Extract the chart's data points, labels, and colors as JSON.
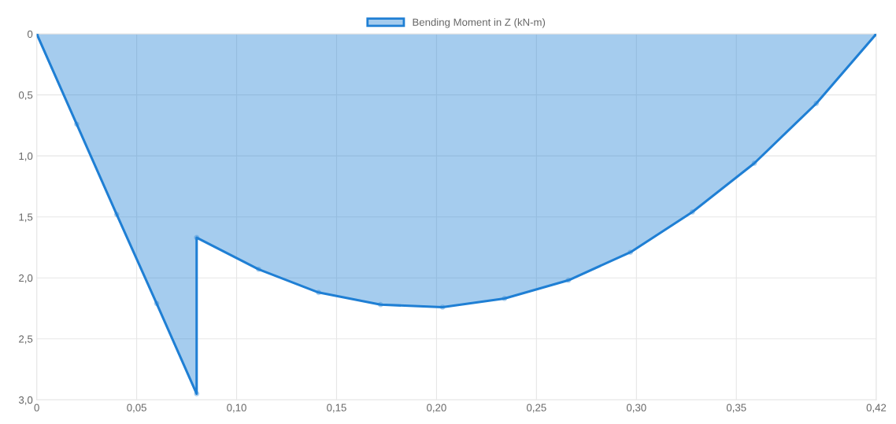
{
  "chart_data": {
    "type": "area",
    "series": [
      {
        "name": "Bending Moment in Z (kN-m)",
        "color": "#1f7fd4",
        "x": [
          0,
          0.02,
          0.04,
          0.06,
          0.08,
          0.08,
          0.111,
          0.141,
          0.172,
          0.203,
          0.234,
          0.266,
          0.297,
          0.328,
          0.359,
          0.39,
          0.42
        ],
        "values": [
          0,
          0.74,
          1.48,
          2.21,
          2.95,
          1.67,
          1.93,
          2.12,
          2.22,
          2.24,
          2.17,
          2.02,
          1.79,
          1.46,
          1.06,
          0.57,
          0
        ]
      }
    ],
    "xlim": [
      0,
      0.42
    ],
    "xticks": [
      0,
      {
        "value": 0.05,
        "label": "0,05"
      },
      {
        "value": 0.1,
        "label": "0,10"
      },
      {
        "value": 0.15,
        "label": "0,15"
      },
      {
        "value": 0.2,
        "label": "0,20"
      },
      {
        "value": 0.25,
        "label": "0,25"
      },
      {
        "value": 0.3,
        "label": "0,30"
      },
      {
        "value": 0.35,
        "label": "0,35"
      },
      {
        "value": 0.42,
        "label": "0,42"
      }
    ],
    "ylim": [
      3.0,
      0
    ],
    "yticks": [
      0,
      {
        "value": 0.5,
        "label": "0,5"
      },
      {
        "value": 1.0,
        "label": "1,0"
      },
      {
        "value": 1.5,
        "label": "1,5"
      },
      {
        "value": 2.0,
        "label": "2,0"
      },
      {
        "value": 2.5,
        "label": "2,5"
      },
      {
        "value": 3.0,
        "label": "3,0"
      }
    ],
    "grid": true,
    "legend": "top",
    "marker": "circle",
    "line_style": "solid"
  }
}
